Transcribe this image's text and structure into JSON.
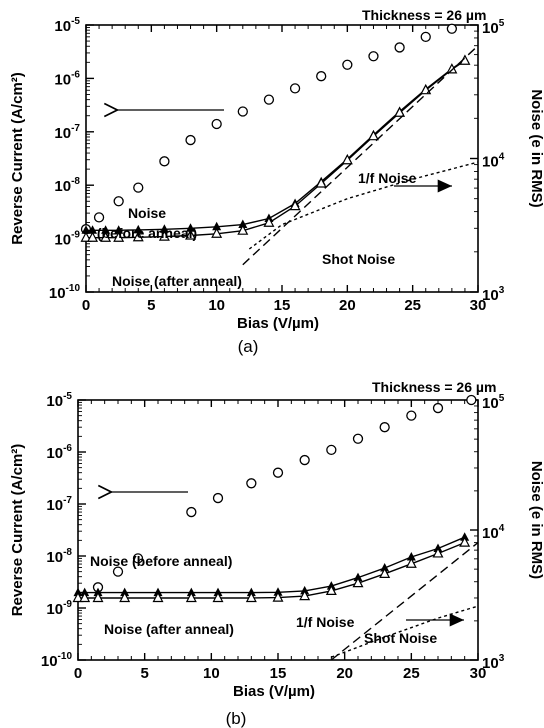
{
  "chart_data": [
    {
      "type": "scatter",
      "caption": "(a)",
      "thickness_note": "Thickness = 26 µm",
      "xlabel": "Bias (V/µm)",
      "ylabel_left": "Reverse Current (A/cm²)",
      "ylabel_right": "Noise (e in RMS)",
      "xlim": [
        0,
        30
      ],
      "ylim_left": [
        1e-10,
        1e-05
      ],
      "ylim_right": [
        1000,
        100000
      ],
      "yscale": "log",
      "grid": false,
      "x_ticks": [
        "0",
        "5",
        "10",
        "15",
        "20",
        "25",
        "30"
      ],
      "y_ticks_left": [
        {
          "base": "10",
          "exp": "-10"
        },
        {
          "base": "10",
          "exp": "-9"
        },
        {
          "base": "10",
          "exp": "-8"
        },
        {
          "base": "10",
          "exp": "-7"
        },
        {
          "base": "10",
          "exp": "-6"
        },
        {
          "base": "10",
          "exp": "-5"
        }
      ],
      "y_ticks_right": [
        {
          "base": "10",
          "exp": "3"
        },
        {
          "base": "10",
          "exp": "4"
        },
        {
          "base": "10",
          "exp": "5"
        }
      ],
      "annotations": [
        "Noise",
        "(before anneal)",
        "Noise (after anneal)",
        "1/f Noise",
        "Shot Noise"
      ],
      "series": [
        {
          "name": "Reverse Current",
          "axis": "left",
          "marker": "circle",
          "x": [
            0,
            1,
            2.5,
            4,
            6,
            8,
            10,
            12,
            14,
            16,
            18,
            20,
            22,
            24,
            26,
            28
          ],
          "y": [
            1.5e-09,
            2.5e-09,
            5e-09,
            9e-09,
            2.8e-08,
            7e-08,
            1.4e-07,
            2.4e-07,
            4e-07,
            6.5e-07,
            1.1e-06,
            1.8e-06,
            2.6e-06,
            3.8e-06,
            6e-06,
            8.5e-06
          ]
        },
        {
          "name": "Noise (before anneal)",
          "axis": "right",
          "marker": "filled-triangle",
          "x": [
            0,
            0.5,
            1.5,
            2.5,
            4,
            6,
            8,
            10,
            12,
            14,
            16,
            18,
            20,
            22,
            24,
            26,
            28,
            29
          ],
          "y": [
            2900,
            2900,
            2900,
            2900,
            2920,
            2950,
            3000,
            3080,
            3200,
            3550,
            4600,
            6700,
            9900,
            15000,
            22500,
            33000,
            47000,
            55000
          ]
        },
        {
          "name": "Noise (after anneal)",
          "axis": "right",
          "marker": "open-triangle",
          "x": [
            0,
            0.5,
            1.5,
            2.5,
            4,
            6,
            8,
            10,
            12,
            14,
            16,
            18,
            20,
            22,
            24,
            26,
            28,
            29
          ],
          "y": [
            2550,
            2550,
            2550,
            2550,
            2570,
            2600,
            2650,
            2730,
            2880,
            3300,
            4400,
            6500,
            9700,
            14700,
            22000,
            32500,
            46500,
            54000
          ]
        },
        {
          "name": "1/f Noise",
          "axis": "right",
          "line": "dashed",
          "x": [
            12,
            30
          ],
          "y": [
            1600,
            70000
          ]
        },
        {
          "name": "Shot Noise",
          "axis": "right",
          "line": "dotted",
          "x": [
            12.5,
            15,
            20,
            25,
            30
          ],
          "y": [
            2100,
            3200,
            5000,
            7000,
            9400
          ]
        }
      ]
    },
    {
      "type": "scatter",
      "caption": "(b)",
      "thickness_note": "Thickness = 26 µm",
      "xlabel": "Bias (V/µm)",
      "ylabel_left": "Reverse Current (A/cm²)",
      "ylabel_right": "Noise (e in RMS)",
      "xlim": [
        0,
        30
      ],
      "ylim_left": [
        1e-10,
        1e-05
      ],
      "ylim_right": [
        1000,
        100000
      ],
      "yscale": "log",
      "grid": false,
      "x_ticks": [
        "0",
        "5",
        "10",
        "15",
        "20",
        "25",
        "30"
      ],
      "y_ticks_left": [
        {
          "base": "10",
          "exp": "-10"
        },
        {
          "base": "10",
          "exp": "-9"
        },
        {
          "base": "10",
          "exp": "-8"
        },
        {
          "base": "10",
          "exp": "-7"
        },
        {
          "base": "10",
          "exp": "-6"
        },
        {
          "base": "10",
          "exp": "-5"
        }
      ],
      "y_ticks_right": [
        {
          "base": "10",
          "exp": "3"
        },
        {
          "base": "10",
          "exp": "4"
        },
        {
          "base": "10",
          "exp": "5"
        }
      ],
      "annotations": [
        "Noise (before anneal)",
        "Noise (after anneal)",
        "1/f Noise",
        "Shot Noise"
      ],
      "series": [
        {
          "name": "Reverse Current",
          "axis": "left",
          "marker": "circle",
          "x": [
            1.5,
            3,
            4.5,
            8.5,
            10.5,
            13,
            15,
            17,
            19,
            21,
            23,
            25,
            27,
            29.5
          ],
          "y": [
            2.5e-09,
            5e-09,
            9e-09,
            7e-08,
            1.3e-07,
            2.5e-07,
            4e-07,
            7e-07,
            1.1e-06,
            1.8e-06,
            3e-06,
            5e-06,
            7e-06,
            1e-05
          ]
        },
        {
          "name": "Noise (before anneal)",
          "axis": "right",
          "marker": "filled-triangle",
          "x": [
            0,
            0.5,
            1.5,
            3.5,
            6,
            8.5,
            10.5,
            13,
            15,
            17,
            19,
            21,
            23,
            25,
            27,
            29
          ],
          "y": [
            3300,
            3300,
            3300,
            3300,
            3300,
            3300,
            3300,
            3300,
            3320,
            3400,
            3700,
            4300,
            5100,
            6200,
            7200,
            8800
          ]
        },
        {
          "name": "Noise (after anneal)",
          "axis": "right",
          "marker": "open-triangle",
          "x": [
            0,
            0.5,
            1.5,
            3.5,
            6,
            8.5,
            10.5,
            13,
            15,
            17,
            19,
            21,
            23,
            25,
            27,
            29
          ],
          "y": [
            3000,
            3000,
            3000,
            3000,
            3000,
            3000,
            3000,
            3000,
            3020,
            3100,
            3400,
            3900,
            4600,
            5500,
            6600,
            8000
          ]
        },
        {
          "name": "1/f Noise",
          "axis": "right",
          "line": "dashed",
          "x": [
            19,
            30
          ],
          "y": [
            1000,
            8000
          ]
        },
        {
          "name": "Shot Noise",
          "axis": "right",
          "line": "dotted",
          "x": [
            19,
            23,
            27,
            30
          ],
          "y": [
            1050,
            1500,
            2100,
            2600
          ]
        }
      ]
    }
  ]
}
